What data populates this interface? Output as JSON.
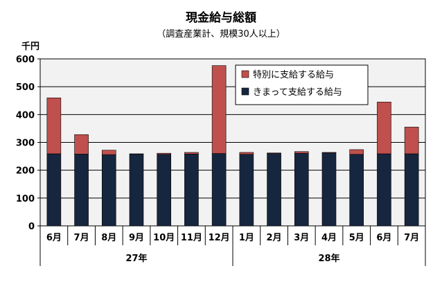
{
  "chart_data": {
    "type": "bar",
    "stacked": true,
    "title": "現金給与総額",
    "subtitle": "（調査産業計、規模30人以上）",
    "ylabel": "千円",
    "ylim": [
      0,
      600
    ],
    "yticks": [
      0,
      100,
      200,
      300,
      400,
      500,
      600
    ],
    "grid": true,
    "legend_position": "top-right",
    "categories": [
      "6月",
      "7月",
      "8月",
      "9月",
      "10月",
      "11月",
      "12月",
      "1月",
      "2月",
      "3月",
      "4月",
      "5月",
      "6月",
      "7月"
    ],
    "groups": [
      {
        "label": "27年",
        "start": 0,
        "end": 6
      },
      {
        "label": "28年",
        "start": 7,
        "end": 13
      }
    ],
    "series": [
      {
        "name": "きまって支給する給与",
        "color": "#17263f",
        "values": [
          259,
          258,
          256,
          258,
          257,
          258,
          260,
          257,
          260,
          261,
          262,
          257,
          259,
          259
        ]
      },
      {
        "name": "特別に支給する給与",
        "color": "#c0504d",
        "values": [
          201,
          70,
          16,
          1,
          4,
          6,
          316,
          7,
          2,
          6,
          2,
          17,
          186,
          96
        ]
      }
    ],
    "legend_order": [
      1,
      0
    ]
  }
}
